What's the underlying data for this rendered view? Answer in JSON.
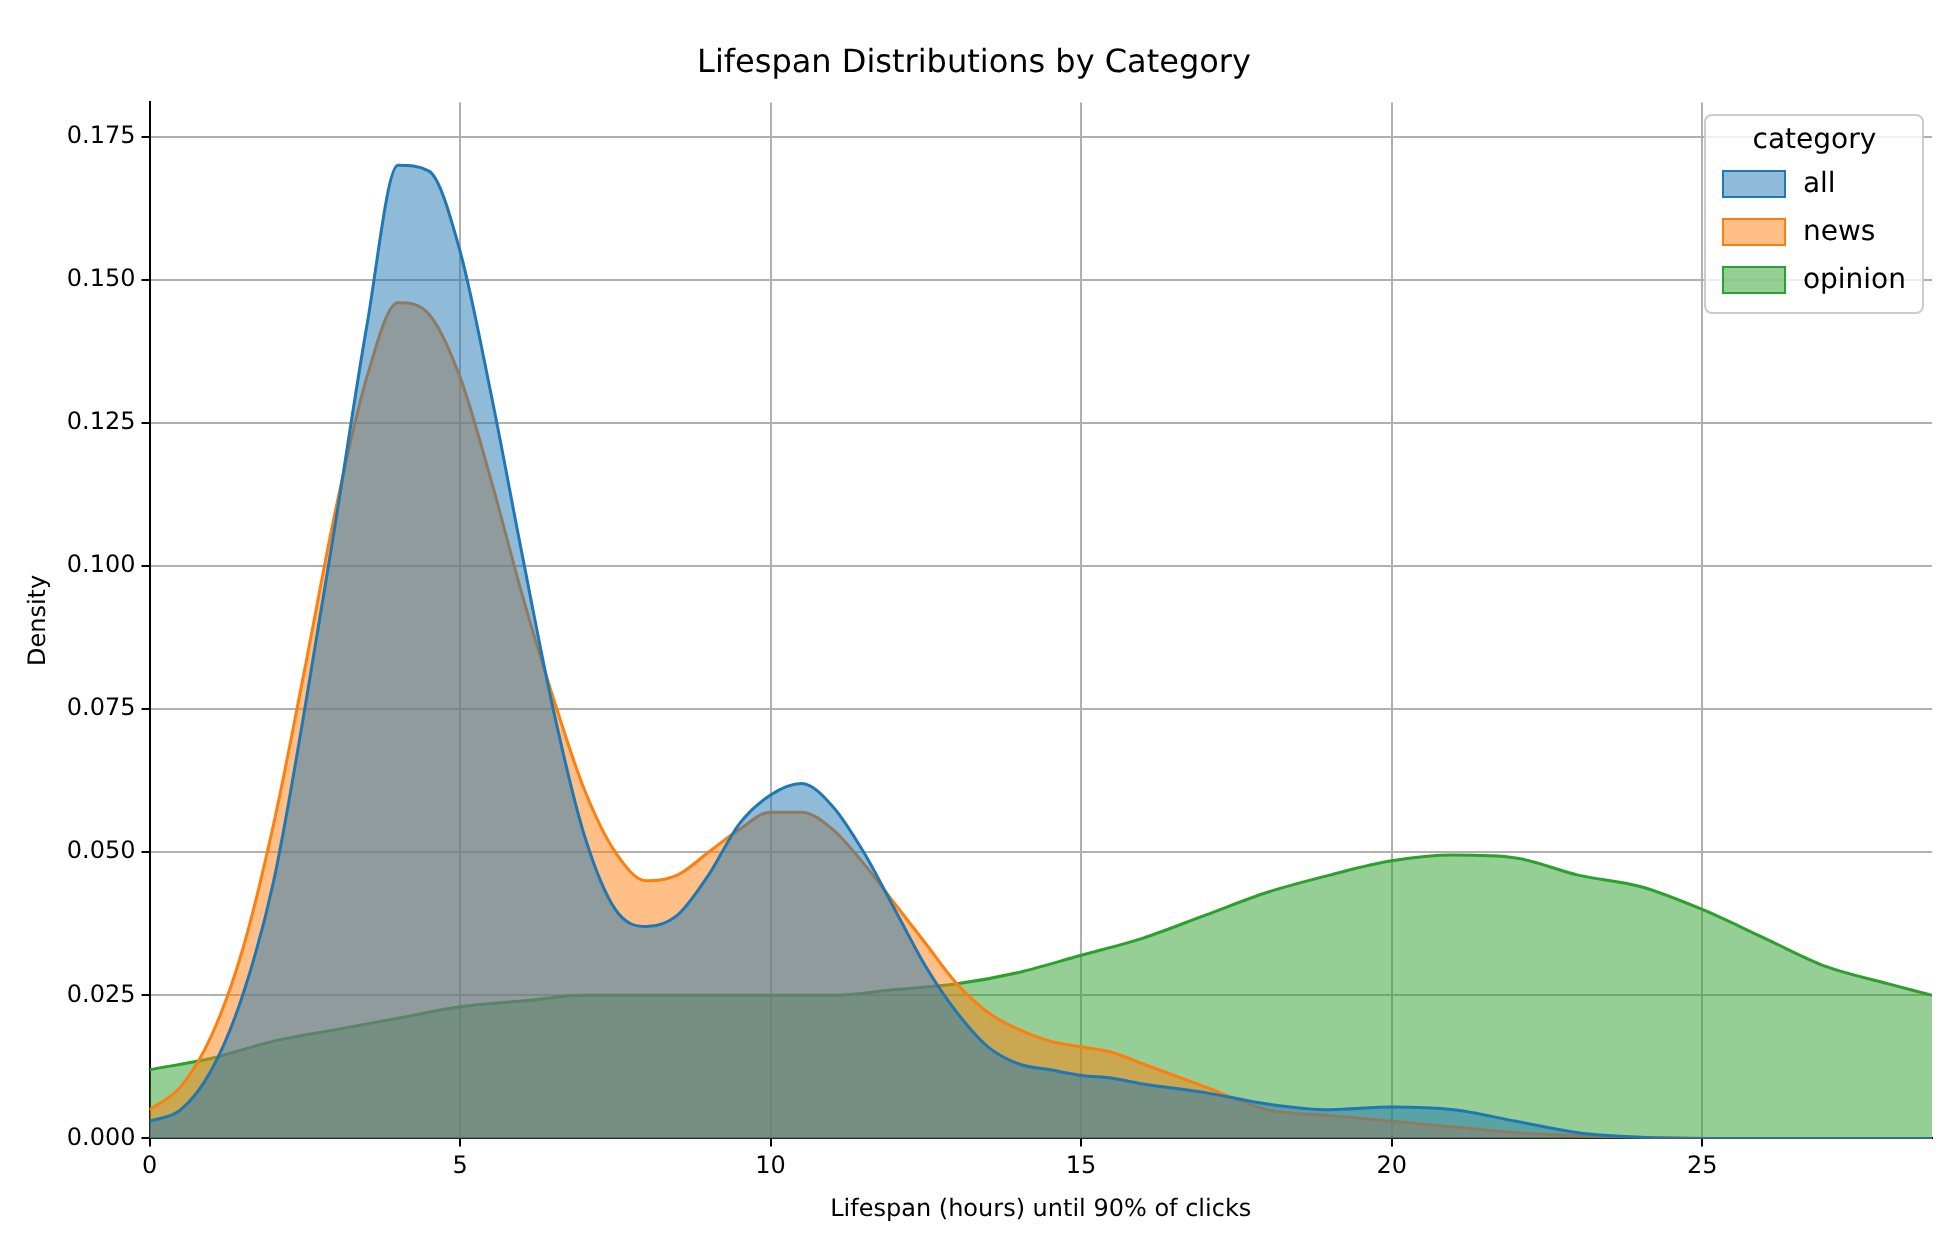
{
  "chart_data": {
    "type": "area",
    "title": "Lifespan Distributions by Category",
    "xlabel": "Lifespan (hours) until 90% of clicks",
    "ylabel": "Density",
    "legend_title": "category",
    "legend": "top right",
    "grid": true,
    "x": [
      0,
      0.5,
      1,
      1.5,
      2,
      2.5,
      3,
      3.5,
      4,
      4.5,
      5,
      5.5,
      6,
      6.5,
      7,
      7.5,
      8,
      8.5,
      9,
      9.5,
      10,
      10.5,
      11,
      11.5,
      12,
      12.5,
      13,
      13.5,
      14,
      14.5,
      15,
      15.5,
      16,
      17,
      18,
      19,
      20,
      21,
      22,
      23,
      24,
      25,
      26,
      27,
      28,
      28.7
    ],
    "series": [
      {
        "name": "all",
        "color": "#1f77b4",
        "values": [
          0.003,
          0.005,
          0.012,
          0.025,
          0.045,
          0.075,
          0.108,
          0.142,
          0.17,
          0.169,
          0.155,
          0.13,
          0.102,
          0.075,
          0.053,
          0.04,
          0.037,
          0.039,
          0.046,
          0.055,
          0.06,
          0.062,
          0.058,
          0.05,
          0.04,
          0.03,
          0.022,
          0.016,
          0.013,
          0.012,
          0.011,
          0.0105,
          0.0095,
          0.008,
          0.006,
          0.005,
          0.0055,
          0.005,
          0.003,
          0.001,
          0.0002,
          0,
          0,
          0,
          0,
          0
        ]
      },
      {
        "name": "news",
        "color": "#ff7f0e",
        "values": [
          0.005,
          0.009,
          0.018,
          0.033,
          0.055,
          0.082,
          0.11,
          0.133,
          0.146,
          0.144,
          0.133,
          0.115,
          0.095,
          0.077,
          0.061,
          0.05,
          0.045,
          0.046,
          0.05,
          0.054,
          0.057,
          0.057,
          0.054,
          0.048,
          0.041,
          0.034,
          0.027,
          0.022,
          0.019,
          0.017,
          0.016,
          0.015,
          0.013,
          0.009,
          0.005,
          0.004,
          0.003,
          0.002,
          0.001,
          0.0005,
          0.0002,
          0,
          0,
          0,
          0,
          0
        ]
      },
      {
        "name": "opinion",
        "color": "#2ca02c",
        "x": [
          0,
          1,
          2,
          3,
          4,
          5,
          6,
          7,
          8,
          9,
          10,
          11,
          12,
          13,
          14,
          15,
          16,
          17,
          18,
          19,
          20,
          21,
          22,
          23,
          24,
          25,
          26,
          27,
          28,
          28.7
        ],
        "values": [
          0.012,
          0.014,
          0.017,
          0.019,
          0.021,
          0.023,
          0.024,
          0.025,
          0.025,
          0.025,
          0.025,
          0.025,
          0.026,
          0.027,
          0.029,
          0.032,
          0.035,
          0.039,
          0.043,
          0.046,
          0.0485,
          0.0495,
          0.049,
          0.046,
          0.044,
          0.04,
          0.035,
          0.03,
          0.027,
          0.025
        ]
      }
    ],
    "xlim": [
      0,
      28.7
    ],
    "xticks": [
      0,
      5,
      10,
      15,
      20,
      25
    ],
    "ylim": [
      0,
      0.181
    ],
    "yticks": [
      {
        "value": 0,
        "label": "0.000"
      },
      {
        "value": 0.025,
        "label": "0.025"
      },
      {
        "value": 0.05,
        "label": "0.050"
      },
      {
        "value": 0.075,
        "label": "0.075"
      },
      {
        "value": 0.1,
        "label": "0.100"
      },
      {
        "value": 0.125,
        "label": "0.125"
      },
      {
        "value": 0.15,
        "label": "0.150"
      },
      {
        "value": 0.175,
        "label": "0.175"
      }
    ]
  }
}
